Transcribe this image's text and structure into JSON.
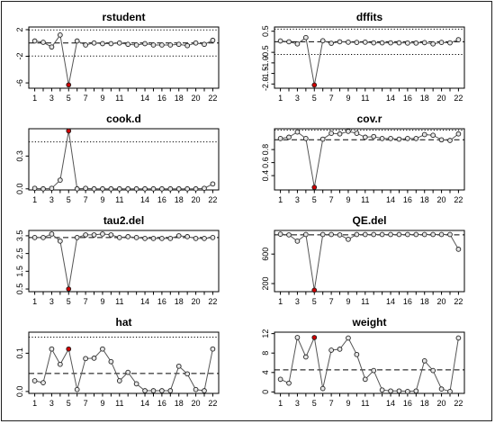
{
  "chart_data": [
    {
      "type": "line",
      "title": "rstudent",
      "x": [
        1,
        2,
        3,
        4,
        5,
        6,
        7,
        8,
        9,
        10,
        11,
        12,
        13,
        14,
        15,
        16,
        17,
        18,
        19,
        20,
        21,
        22
      ],
      "values": [
        0.3,
        0.1,
        -0.6,
        1.2,
        -6.3,
        0.3,
        -0.3,
        0.0,
        -0.1,
        -0.1,
        0.0,
        -0.2,
        -0.3,
        -0.1,
        -0.3,
        -0.3,
        -0.3,
        -0.2,
        -0.4,
        0.0,
        -0.2,
        0.4
      ],
      "highlight_index": 5,
      "ylim": [
        -6.8,
        2.4
      ],
      "yticks": [
        2,
        -2,
        -6
      ],
      "xticks": [
        1,
        3,
        5,
        7,
        9,
        11,
        14,
        16,
        18,
        20,
        22
      ],
      "dashed": [
        0
      ],
      "dotted": [
        1.96,
        -1.96
      ]
    },
    {
      "type": "line",
      "title": "dffits",
      "x": [
        1,
        2,
        3,
        4,
        5,
        6,
        7,
        8,
        9,
        10,
        11,
        12,
        13,
        14,
        15,
        16,
        17,
        18,
        19,
        20,
        21,
        22
      ],
      "values": [
        0.04,
        0.0,
        -0.1,
        0.2,
        -2.05,
        0.05,
        -0.07,
        0.0,
        -0.02,
        -0.03,
        -0.02,
        -0.05,
        -0.05,
        -0.05,
        -0.05,
        -0.06,
        -0.06,
        -0.04,
        -0.1,
        -0.03,
        -0.05,
        0.1
      ],
      "highlight_index": 5,
      "ylim": [
        -2.2,
        0.7
      ],
      "yticks": [
        0.5,
        -0.5,
        -1.0,
        -1.5,
        -2.0
      ],
      "xticks": [
        1,
        3,
        5,
        7,
        9,
        11,
        14,
        16,
        18,
        20,
        22
      ],
      "dashed": [
        0
      ],
      "dotted": [
        0.6,
        -0.6
      ]
    },
    {
      "type": "line",
      "title": "cook.d",
      "x": [
        1,
        2,
        3,
        4,
        5,
        6,
        7,
        8,
        9,
        10,
        11,
        12,
        13,
        14,
        15,
        16,
        17,
        18,
        19,
        20,
        21,
        22
      ],
      "values": [
        0.005,
        0.0,
        0.005,
        0.08,
        0.53,
        0.0,
        0.005,
        0.0,
        0.0,
        0.0,
        0.0,
        0.0,
        0.0,
        0.0,
        0.0,
        0.0,
        0.0,
        0.0,
        0.0,
        0.0,
        0.005,
        0.045
      ],
      "highlight_index": 5,
      "ylim": [
        -0.01,
        0.55
      ],
      "yticks": [
        0.0,
        0.3
      ],
      "xticks": [
        1,
        3,
        5,
        7,
        9,
        11,
        14,
        16,
        18,
        20,
        22
      ],
      "dashed": [],
      "dotted": [
        0.43
      ]
    },
    {
      "type": "line",
      "title": "cov.r",
      "x": [
        1,
        2,
        3,
        4,
        5,
        6,
        7,
        8,
        9,
        10,
        11,
        12,
        13,
        14,
        15,
        16,
        17,
        18,
        19,
        20,
        21,
        22
      ],
      "values": [
        0.97,
        0.99,
        1.07,
        0.97,
        0.22,
        0.96,
        1.05,
        1.04,
        1.08,
        1.05,
        0.99,
        1.0,
        0.97,
        0.97,
        0.96,
        0.97,
        0.97,
        1.03,
        1.02,
        0.95,
        0.94,
        1.04
      ],
      "highlight_index": 5,
      "ylim": [
        0.18,
        1.12
      ],
      "yticks": [
        0.4,
        0.6,
        0.8
      ],
      "xticks": [
        1,
        3,
        5,
        7,
        9,
        11,
        14,
        16,
        18,
        20,
        22
      ],
      "dashed": [
        0.95
      ],
      "dotted": [
        1.1
      ]
    },
    {
      "type": "line",
      "title": "tau2.del",
      "x": [
        1,
        2,
        3,
        4,
        5,
        6,
        7,
        8,
        9,
        10,
        11,
        12,
        13,
        14,
        15,
        16,
        17,
        18,
        19,
        20,
        21,
        22
      ],
      "values": [
        3.4,
        3.4,
        3.6,
        3.2,
        0.5,
        3.4,
        3.55,
        3.55,
        3.6,
        3.55,
        3.4,
        3.45,
        3.4,
        3.35,
        3.35,
        3.35,
        3.35,
        3.5,
        3.45,
        3.35,
        3.35,
        3.4
      ],
      "highlight_index": 5,
      "ylim": [
        0.35,
        3.8
      ],
      "yticks": [
        0.5,
        1.5,
        2.5,
        3.5
      ],
      "xticks": [
        1,
        3,
        5,
        7,
        9,
        11,
        14,
        16,
        18,
        20,
        22
      ],
      "dashed": [
        3.4
      ],
      "dotted": []
    },
    {
      "type": "line",
      "title": "QE.del",
      "x": [
        1,
        2,
        3,
        4,
        5,
        6,
        7,
        8,
        9,
        10,
        11,
        12,
        13,
        14,
        15,
        16,
        17,
        18,
        19,
        20,
        21,
        22
      ],
      "values": [
        870,
        860,
        775,
        865,
        110,
        865,
        865,
        860,
        800,
        865,
        865,
        865,
        865,
        865,
        865,
        865,
        865,
        865,
        865,
        865,
        865,
        665
      ],
      "highlight_index": 5,
      "ylim": [
        90,
        920
      ],
      "yticks": [
        200,
        600
      ],
      "xticks": [
        1,
        3,
        5,
        7,
        9,
        11,
        14,
        16,
        18,
        20,
        22
      ],
      "dashed": [
        860
      ],
      "dotted": []
    },
    {
      "type": "line",
      "title": "hat",
      "x": [
        1,
        2,
        3,
        4,
        5,
        6,
        7,
        8,
        9,
        10,
        11,
        12,
        13,
        14,
        15,
        16,
        17,
        18,
        19,
        20,
        21,
        22
      ],
      "values": [
        0.028,
        0.023,
        0.111,
        0.071,
        0.111,
        0.005,
        0.086,
        0.087,
        0.111,
        0.078,
        0.028,
        0.05,
        0.02,
        0.002,
        0.002,
        0.002,
        0.002,
        0.066,
        0.046,
        0.005,
        0.002,
        0.111
      ],
      "highlight_index": 5,
      "ylim": [
        -0.005,
        0.155
      ],
      "yticks": [
        0.0,
        0.1
      ],
      "xticks": [
        1,
        3,
        5,
        7,
        9,
        11,
        14,
        16,
        18,
        20,
        22
      ],
      "dashed": [
        0.047
      ],
      "dotted": [
        0.142
      ]
    },
    {
      "type": "line",
      "title": "weight",
      "x": [
        1,
        2,
        3,
        4,
        5,
        6,
        7,
        8,
        9,
        10,
        11,
        12,
        13,
        14,
        15,
        16,
        17,
        18,
        19,
        20,
        21,
        22
      ],
      "values": [
        2.6,
        1.8,
        11.2,
        7.2,
        11.2,
        0.7,
        8.6,
        8.8,
        11.1,
        7.7,
        2.6,
        4.4,
        0.4,
        0.2,
        0.2,
        0.1,
        0.2,
        6.4,
        4.4,
        0.6,
        0.1,
        11.1
      ],
      "highlight_index": 5,
      "ylim": [
        -0.3,
        12.3
      ],
      "yticks": [
        0,
        4,
        8,
        12
      ],
      "xticks": [
        1,
        3,
        5,
        7,
        9,
        11,
        14,
        16,
        18,
        20,
        22
      ],
      "dashed": [
        4.55
      ],
      "dotted": []
    }
  ],
  "colors": {
    "line": "#555555",
    "point_fill": "#e6e6e6",
    "highlight_fill": "#d00000",
    "axis": "#000000",
    "frame": "#1f1f1f"
  }
}
